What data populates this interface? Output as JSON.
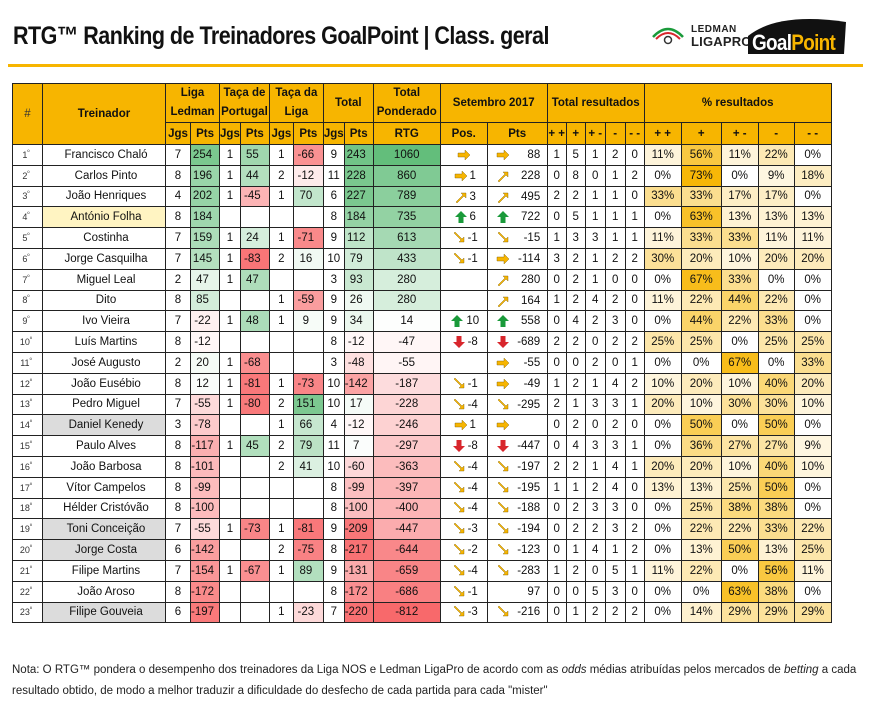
{
  "title": "RTG™ Ranking de Treinadores GoalPoint | Class. geral",
  "logos": {
    "ledman_top": "LEDMAN",
    "ledman_bottom": "LIGAPRO",
    "goalpoint_a": "Goal",
    "goalpoint_b": "Point"
  },
  "colors": {
    "accent": "#f7b500",
    "green_strong": "#63be7b",
    "red_strong": "#f8696b",
    "arrow_green": "#1a9a3a",
    "arrow_red": "#d8262c",
    "arrow_yellow": "#f7b500"
  },
  "headers": {
    "hash": "#",
    "treinador": "Treinador",
    "liga": "Liga Ledman",
    "taca_pt": "Taça de Portugal",
    "taca_liga": "Taça da Liga",
    "total": "Total",
    "total_pond": "Total Ponderado",
    "rtg": "RTG",
    "setembro": "Setembro 2017",
    "total_res": "Total resultados",
    "pct_res": "% resultados",
    "jgs": "Jgs",
    "pts": "Pts",
    "pos": "Pos.",
    "res_cols": [
      "+ +",
      "+",
      "+ -",
      "-",
      "- -"
    ]
  },
  "rows": [
    {
      "pos": "1",
      "name": "Francisco Chaló",
      "hl": "",
      "lj": "7",
      "lp": "254",
      "tj": "1",
      "tp": "55",
      "cj": "1",
      "cp": "-66",
      "toj": "9",
      "top": "243",
      "rtg": "1060",
      "sp_icon": "right",
      "sp": "",
      "spt_icon": "right",
      "spt": "88",
      "res": [
        "1",
        "5",
        "1",
        "2",
        "0"
      ],
      "pct": [
        "11%",
        "56%",
        "11%",
        "22%",
        "0%"
      ]
    },
    {
      "pos": "2",
      "name": "Carlos Pinto",
      "hl": "",
      "lj": "8",
      "lp": "196",
      "tj": "1",
      "tp": "44",
      "cj": "2",
      "cp": "-12",
      "toj": "11",
      "top": "228",
      "rtg": "860",
      "sp_icon": "right",
      "sp": "1",
      "spt_icon": "up",
      "spt": "228",
      "res": [
        "0",
        "8",
        "0",
        "1",
        "2"
      ],
      "pct": [
        "0%",
        "73%",
        "0%",
        "9%",
        "18%"
      ]
    },
    {
      "pos": "3",
      "name": "João Henriques",
      "hl": "",
      "lj": "4",
      "lp": "202",
      "tj": "1",
      "tp": "-45",
      "cj": "1",
      "cp": "70",
      "toj": "6",
      "top": "227",
      "rtg": "789",
      "sp_icon": "up",
      "sp": "3",
      "spt_icon": "up",
      "spt": "495",
      "res": [
        "2",
        "2",
        "1",
        "1",
        "0"
      ],
      "pct": [
        "33%",
        "33%",
        "17%",
        "17%",
        "0%"
      ]
    },
    {
      "pos": "4",
      "name": "António Folha",
      "hl": "yellow",
      "lj": "8",
      "lp": "184",
      "tj": "",
      "tp": "",
      "cj": "",
      "cp": "",
      "toj": "8",
      "top": "184",
      "rtg": "735",
      "sp_icon": "bigup",
      "sp": "6",
      "spt_icon": "bigup",
      "spt": "722",
      "res": [
        "0",
        "5",
        "1",
        "1",
        "1"
      ],
      "pct": [
        "0%",
        "63%",
        "13%",
        "13%",
        "13%"
      ]
    },
    {
      "pos": "5",
      "name": "Costinha",
      "hl": "",
      "lj": "7",
      "lp": "159",
      "tj": "1",
      "tp": "24",
      "cj": "1",
      "cp": "-71",
      "toj": "9",
      "top": "112",
      "rtg": "613",
      "sp_icon": "down",
      "sp": "-1",
      "spt_icon": "down",
      "spt": "-15",
      "res": [
        "1",
        "3",
        "3",
        "1",
        "1"
      ],
      "pct": [
        "11%",
        "33%",
        "33%",
        "11%",
        "11%"
      ]
    },
    {
      "pos": "6",
      "name": "Jorge Casquilha",
      "hl": "",
      "lj": "7",
      "lp": "145",
      "tj": "1",
      "tp": "-83",
      "cj": "2",
      "cp": "16",
      "toj": "10",
      "top": "79",
      "rtg": "433",
      "sp_icon": "down",
      "sp": "-1",
      "spt_icon": "right",
      "spt": "-114",
      "res": [
        "3",
        "2",
        "1",
        "2",
        "2"
      ],
      "pct": [
        "30%",
        "20%",
        "10%",
        "20%",
        "20%"
      ]
    },
    {
      "pos": "7",
      "name": "Miguel Leal",
      "hl": "",
      "lj": "2",
      "lp": "47",
      "tj": "1",
      "tp": "47",
      "cj": "",
      "cp": "",
      "toj": "3",
      "top": "93",
      "rtg": "280",
      "sp_icon": "",
      "sp": "",
      "spt_icon": "up",
      "spt": "280",
      "res": [
        "0",
        "2",
        "1",
        "0",
        "0"
      ],
      "pct": [
        "0%",
        "67%",
        "33%",
        "0%",
        "0%"
      ]
    },
    {
      "pos": "8",
      "name": "Dito",
      "hl": "",
      "lj": "8",
      "lp": "85",
      "tj": "",
      "tp": "",
      "cj": "1",
      "cp": "-59",
      "toj": "9",
      "top": "26",
      "rtg": "280",
      "sp_icon": "",
      "sp": "",
      "spt_icon": "up",
      "spt": "164",
      "res": [
        "1",
        "2",
        "4",
        "2",
        "0"
      ],
      "pct": [
        "11%",
        "22%",
        "44%",
        "22%",
        "0%"
      ]
    },
    {
      "pos": "9",
      "name": "Ivo Vieira",
      "hl": "",
      "lj": "7",
      "lp": "-22",
      "tj": "1",
      "tp": "48",
      "cj": "1",
      "cp": "9",
      "toj": "9",
      "top": "34",
      "rtg": "14",
      "sp_icon": "bigup",
      "sp": "10",
      "spt_icon": "bigup",
      "spt": "558",
      "res": [
        "0",
        "4",
        "2",
        "3",
        "0"
      ],
      "pct": [
        "0%",
        "44%",
        "22%",
        "33%",
        "0%"
      ]
    },
    {
      "pos": "10",
      "name": "Luís Martins",
      "hl": "",
      "lj": "8",
      "lp": "-12",
      "tj": "",
      "tp": "",
      "cj": "",
      "cp": "",
      "toj": "8",
      "top": "-12",
      "rtg": "-47",
      "sp_icon": "bigdown",
      "sp": "-8",
      "spt_icon": "bigdown",
      "spt": "-689",
      "res": [
        "2",
        "2",
        "0",
        "2",
        "2"
      ],
      "pct": [
        "25%",
        "25%",
        "0%",
        "25%",
        "25%"
      ]
    },
    {
      "pos": "11",
      "name": "José Augusto",
      "hl": "",
      "lj": "2",
      "lp": "20",
      "tj": "1",
      "tp": "-68",
      "cj": "",
      "cp": "",
      "toj": "3",
      "top": "-48",
      "rtg": "-55",
      "sp_icon": "",
      "sp": "",
      "spt_icon": "right",
      "spt": "-55",
      "res": [
        "0",
        "0",
        "2",
        "0",
        "1"
      ],
      "pct": [
        "0%",
        "0%",
        "67%",
        "0%",
        "33%"
      ]
    },
    {
      "pos": "12",
      "name": "João Eusébio",
      "hl": "",
      "lj": "8",
      "lp": "12",
      "tj": "1",
      "tp": "-81",
      "cj": "1",
      "cp": "-73",
      "toj": "10",
      "top": "-142",
      "rtg": "-187",
      "sp_icon": "down",
      "sp": "-1",
      "spt_icon": "right",
      "spt": "-49",
      "res": [
        "1",
        "2",
        "1",
        "4",
        "2"
      ],
      "pct": [
        "10%",
        "20%",
        "10%",
        "40%",
        "20%"
      ]
    },
    {
      "pos": "13",
      "name": "Pedro Miguel",
      "hl": "",
      "lj": "7",
      "lp": "-55",
      "tj": "1",
      "tp": "-80",
      "cj": "2",
      "cp": "151",
      "toj": "10",
      "top": "17",
      "rtg": "-228",
      "sp_icon": "down",
      "sp": "-4",
      "spt_icon": "down",
      "spt": "-295",
      "res": [
        "2",
        "1",
        "3",
        "3",
        "1"
      ],
      "pct": [
        "20%",
        "10%",
        "30%",
        "30%",
        "10%"
      ]
    },
    {
      "pos": "14",
      "name": "Daniel Kenedy",
      "hl": "grey",
      "lj": "3",
      "lp": "-78",
      "tj": "",
      "tp": "",
      "cj": "1",
      "cp": "66",
      "toj": "4",
      "top": "-12",
      "rtg": "-246",
      "sp_icon": "right",
      "sp": "1",
      "spt_icon": "right",
      "spt": "",
      "res": [
        "0",
        "2",
        "0",
        "2",
        "0"
      ],
      "pct": [
        "0%",
        "50%",
        "0%",
        "50%",
        "0%"
      ]
    },
    {
      "pos": "15",
      "name": "Paulo Alves",
      "hl": "",
      "lj": "8",
      "lp": "-117",
      "tj": "1",
      "tp": "45",
      "cj": "2",
      "cp": "79",
      "toj": "11",
      "top": "7",
      "rtg": "-297",
      "sp_icon": "bigdown",
      "sp": "-8",
      "spt_icon": "bigdown",
      "spt": "-447",
      "res": [
        "0",
        "4",
        "3",
        "3",
        "1"
      ],
      "pct": [
        "0%",
        "36%",
        "27%",
        "27%",
        "9%"
      ]
    },
    {
      "pos": "16",
      "name": "João Barbosa",
      "hl": "",
      "lj": "8",
      "lp": "-101",
      "tj": "",
      "tp": "",
      "cj": "2",
      "cp": "41",
      "toj": "10",
      "top": "-60",
      "rtg": "-363",
      "sp_icon": "down",
      "sp": "-4",
      "spt_icon": "down",
      "spt": "-197",
      "res": [
        "2",
        "2",
        "1",
        "4",
        "1"
      ],
      "pct": [
        "20%",
        "20%",
        "10%",
        "40%",
        "10%"
      ]
    },
    {
      "pos": "17",
      "name": "Vítor Campelos",
      "hl": "",
      "lj": "8",
      "lp": "-99",
      "tj": "",
      "tp": "",
      "cj": "",
      "cp": "",
      "toj": "8",
      "top": "-99",
      "rtg": "-397",
      "sp_icon": "down",
      "sp": "-4",
      "spt_icon": "down",
      "spt": "-195",
      "res": [
        "1",
        "1",
        "2",
        "4",
        "0"
      ],
      "pct": [
        "13%",
        "13%",
        "25%",
        "50%",
        "0%"
      ]
    },
    {
      "pos": "18",
      "name": "Hélder Cristóvão",
      "hl": "",
      "lj": "8",
      "lp": "-100",
      "tj": "",
      "tp": "",
      "cj": "",
      "cp": "",
      "toj": "8",
      "top": "-100",
      "rtg": "-400",
      "sp_icon": "down",
      "sp": "-4",
      "spt_icon": "down",
      "spt": "-188",
      "res": [
        "0",
        "2",
        "3",
        "3",
        "0"
      ],
      "pct": [
        "0%",
        "25%",
        "38%",
        "38%",
        "0%"
      ]
    },
    {
      "pos": "19",
      "name": "Toni Conceição",
      "hl": "grey",
      "lj": "7",
      "lp": "-55",
      "tj": "1",
      "tp": "-73",
      "cj": "1",
      "cp": "-81",
      "toj": "9",
      "top": "-209",
      "rtg": "-447",
      "sp_icon": "down",
      "sp": "-3",
      "spt_icon": "down",
      "spt": "-194",
      "res": [
        "0",
        "2",
        "2",
        "3",
        "2"
      ],
      "pct": [
        "0%",
        "22%",
        "22%",
        "33%",
        "22%"
      ]
    },
    {
      "pos": "20",
      "name": "Jorge Costa",
      "hl": "grey",
      "lj": "6",
      "lp": "-142",
      "tj": "",
      "tp": "",
      "cj": "2",
      "cp": "-75",
      "toj": "8",
      "top": "-217",
      "rtg": "-644",
      "sp_icon": "down",
      "sp": "-2",
      "spt_icon": "down",
      "spt": "-123",
      "res": [
        "0",
        "1",
        "4",
        "1",
        "2"
      ],
      "pct": [
        "0%",
        "13%",
        "50%",
        "13%",
        "25%"
      ]
    },
    {
      "pos": "21",
      "name": "Filipe Martins",
      "hl": "",
      "lj": "7",
      "lp": "-154",
      "tj": "1",
      "tp": "-67",
      "cj": "1",
      "cp": "89",
      "toj": "9",
      "top": "-131",
      "rtg": "-659",
      "sp_icon": "down",
      "sp": "-4",
      "spt_icon": "down",
      "spt": "-283",
      "res": [
        "1",
        "2",
        "0",
        "5",
        "1"
      ],
      "pct": [
        "11%",
        "22%",
        "0%",
        "56%",
        "11%"
      ]
    },
    {
      "pos": "22",
      "name": "João Aroso",
      "hl": "",
      "lj": "8",
      "lp": "-172",
      "tj": "",
      "tp": "",
      "cj": "",
      "cp": "",
      "toj": "8",
      "top": "-172",
      "rtg": "-686",
      "sp_icon": "down",
      "sp": "-1",
      "spt_icon": "",
      "spt": "97",
      "res": [
        "0",
        "0",
        "5",
        "3",
        "0"
      ],
      "pct": [
        "0%",
        "0%",
        "63%",
        "38%",
        "0%"
      ]
    },
    {
      "pos": "23",
      "name": "Filipe Gouveia",
      "hl": "grey",
      "lj": "6",
      "lp": "-197",
      "tj": "",
      "tp": "",
      "cj": "1",
      "cp": "-23",
      "toj": "7",
      "top": "-220",
      "rtg": "-812",
      "sp_icon": "down",
      "sp": "-3",
      "spt_icon": "down",
      "spt": "-216",
      "res": [
        "0",
        "1",
        "2",
        "2",
        "2"
      ],
      "pct": [
        "0%",
        "14%",
        "29%",
        "29%",
        "29%"
      ]
    }
  ],
  "note": {
    "a": "Nota: O RTG™ pondera o desempenho dos treinadores da Liga NOS e Ledman LigaPro de acordo com as ",
    "b": "odds",
    "c": " médias atribuídas pelos mercados de ",
    "d": "betting",
    "e": " a cada",
    "f": "resultado obtido, de modo a melhor traduzir a dificuldade do desfecho de cada partida para cada \"mister\""
  }
}
